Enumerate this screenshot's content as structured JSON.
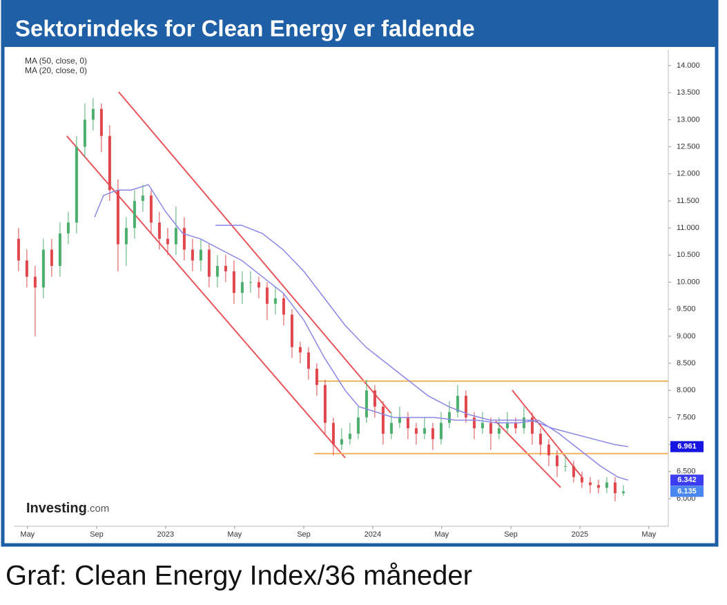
{
  "chart_data": {
    "type": "candlestick",
    "title": "Sektorindeks for Clean Energy er faldende",
    "caption": "Graf: Clean Energy Index/36 måneder",
    "watermark": "Investing",
    "watermark_suffix": ".com",
    "up_color": "#4caf6e",
    "down_color": "#e0474c",
    "x": [
      2022.29,
      2022.33,
      2022.37,
      2022.41,
      2022.45,
      2022.49,
      2022.53,
      2022.57,
      2022.61,
      2022.65,
      2022.69,
      2022.73,
      2022.77,
      2022.81,
      2022.85,
      2022.89,
      2022.93,
      2022.97,
      2023.01,
      2023.05,
      2023.09,
      2023.13,
      2023.17,
      2023.21,
      2023.25,
      2023.29,
      2023.33,
      2023.37,
      2023.41,
      2023.45,
      2023.49,
      2023.53,
      2023.57,
      2023.61,
      2023.65,
      2023.69,
      2023.73,
      2023.77,
      2023.81,
      2023.85,
      2023.89,
      2023.93,
      2023.97,
      2024.01,
      2024.05,
      2024.09,
      2024.13,
      2024.17,
      2024.21,
      2024.25,
      2024.29,
      2024.33,
      2024.37,
      2024.41,
      2024.45,
      2024.49,
      2024.53,
      2024.57,
      2024.61,
      2024.65,
      2024.69,
      2024.73,
      2024.77,
      2024.81,
      2024.85,
      2024.89,
      2024.93,
      2024.97,
      2025.01,
      2025.05,
      2025.09,
      2025.13,
      2025.17,
      2025.21
    ],
    "ohlc": [
      [
        10800,
        11000,
        10200,
        10400
      ],
      [
        10400,
        10600,
        9900,
        10100
      ],
      [
        10100,
        10300,
        9000,
        9900
      ],
      [
        9900,
        10800,
        9700,
        10600
      ],
      [
        10600,
        10800,
        10100,
        10300
      ],
      [
        10300,
        11100,
        10100,
        10900
      ],
      [
        10900,
        11300,
        10700,
        11100
      ],
      [
        11100,
        12700,
        10900,
        12500
      ],
      [
        12500,
        13300,
        12300,
        13000
      ],
      [
        13000,
        13400,
        12800,
        13200
      ],
      [
        13200,
        13300,
        12400,
        12700
      ],
      [
        12700,
        12900,
        11500,
        11700
      ],
      [
        11700,
        11900,
        10200,
        10700
      ],
      [
        10700,
        11200,
        10300,
        11000
      ],
      [
        11000,
        11700,
        10800,
        11500
      ],
      [
        11500,
        11800,
        11300,
        11600
      ],
      [
        11600,
        11700,
        10900,
        11100
      ],
      [
        11100,
        11300,
        10600,
        10800
      ],
      [
        10800,
        11000,
        10500,
        10700
      ],
      [
        10700,
        11400,
        10500,
        11000
      ],
      [
        11000,
        11200,
        10400,
        10600
      ],
      [
        10600,
        10800,
        10200,
        10400
      ],
      [
        10400,
        10800,
        10200,
        10600
      ],
      [
        10600,
        10700,
        9900,
        10100
      ],
      [
        10100,
        10500,
        9900,
        10300
      ],
      [
        10300,
        10500,
        10000,
        10200
      ],
      [
        10200,
        10400,
        9600,
        9800
      ],
      [
        9800,
        10200,
        9600,
        10000
      ],
      [
        10000,
        10200,
        9800,
        10000
      ],
      [
        10000,
        10100,
        9700,
        9900
      ],
      [
        9900,
        10000,
        9300,
        9600
      ],
      [
        9600,
        9900,
        9400,
        9700
      ],
      [
        9700,
        9800,
        9200,
        9400
      ],
      [
        9400,
        9500,
        8600,
        8800
      ],
      [
        8800,
        8900,
        8500,
        8700
      ],
      [
        8700,
        8800,
        8200,
        8400
      ],
      [
        8400,
        8500,
        7900,
        8100
      ],
      [
        8100,
        8200,
        7200,
        7400
      ],
      [
        7400,
        7500,
        6800,
        7000
      ],
      [
        7000,
        7300,
        6900,
        7100
      ],
      [
        7100,
        7400,
        7000,
        7200
      ],
      [
        7200,
        7700,
        7100,
        7500
      ],
      [
        7500,
        8200,
        7400,
        8000
      ],
      [
        8000,
        8100,
        7500,
        7700
      ],
      [
        7700,
        7800,
        7000,
        7200
      ],
      [
        7200,
        7600,
        7100,
        7400
      ],
      [
        7400,
        7700,
        7300,
        7500
      ],
      [
        7500,
        7600,
        7100,
        7300
      ],
      [
        7300,
        7400,
        7000,
        7200
      ],
      [
        7200,
        7500,
        7100,
        7300
      ],
      [
        7300,
        7400,
        6900,
        7100
      ],
      [
        7100,
        7600,
        7000,
        7400
      ],
      [
        7400,
        7800,
        7300,
        7600
      ],
      [
        7600,
        8100,
        7500,
        7900
      ],
      [
        7900,
        8000,
        7400,
        7500
      ],
      [
        7500,
        7600,
        7100,
        7300
      ],
      [
        7300,
        7600,
        7200,
        7400
      ],
      [
        7400,
        7500,
        6900,
        7200
      ],
      [
        7200,
        7500,
        7100,
        7300
      ],
      [
        7300,
        7600,
        7200,
        7400
      ],
      [
        7400,
        7500,
        7200,
        7300
      ],
      [
        7300,
        7700,
        7200,
        7500
      ],
      [
        7500,
        7600,
        7000,
        7200
      ],
      [
        7200,
        7300,
        6800,
        7000
      ],
      [
        7000,
        7100,
        6600,
        6800
      ],
      [
        6800,
        6900,
        6400,
        6600
      ],
      [
        6600,
        6800,
        6500,
        6600
      ],
      [
        6600,
        6700,
        6300,
        6400
      ],
      [
        6400,
        6500,
        6200,
        6300
      ],
      [
        6300,
        6400,
        6100,
        6250
      ],
      [
        6250,
        6350,
        6100,
        6200
      ],
      [
        6200,
        6400,
        6100,
        6300
      ],
      [
        6300,
        6400,
        5950,
        6100
      ],
      [
        6100,
        6250,
        6050,
        6135
      ]
    ],
    "series": [
      {
        "name": "MA (50, close, 0)",
        "color": "#8a86e6",
        "x": [
          2023.24,
          2023.367,
          2023.467,
          2023.567,
          2023.667,
          2023.767,
          2023.867,
          2023.967,
          2024.067,
          2024.167,
          2024.267,
          2024.367,
          2024.467,
          2024.567,
          2024.667,
          2024.767,
          2024.867,
          2024.967,
          2025.067,
          2025.167,
          2025.233
        ],
        "values": [
          11050,
          11050,
          10900,
          10600,
          10200,
          9700,
          9200,
          8800,
          8500,
          8200,
          7900,
          7700,
          7550,
          7450,
          7450,
          7450,
          7300,
          7200,
          7100,
          7000,
          6961
        ]
      },
      {
        "name": "MA (20, close, 0)",
        "color": "#8a86e6",
        "x": [
          2022.657,
          2022.7,
          2022.767,
          2022.833,
          2022.917,
          2023.0,
          2023.083,
          2023.167,
          2023.267,
          2023.367,
          2023.467,
          2023.567,
          2023.667,
          2023.767,
          2023.867,
          2023.933,
          2024.017,
          2024.1,
          2024.2,
          2024.3,
          2024.4,
          2024.5,
          2024.6,
          2024.7,
          2024.8,
          2024.9,
          2025.0,
          2025.1,
          2025.183,
          2025.233
        ],
        "values": [
          11200,
          11600,
          11700,
          11700,
          11800,
          11300,
          10900,
          10800,
          10600,
          10400,
          10100,
          9800,
          9300,
          8600,
          8000,
          7700,
          7600,
          7500,
          7500,
          7500,
          7450,
          7450,
          7400,
          7400,
          7450,
          7200,
          6900,
          6600,
          6400,
          6342
        ]
      }
    ],
    "trend_lines": [
      {
        "color": "#e8545a",
        "x": [
          2022.523,
          2023.867
        ],
        "values": [
          12699,
          6755
        ]
      },
      {
        "color": "#e8545a",
        "x": [
          2022.773,
          2024.087
        ],
        "values": [
          13515,
          7584
        ]
      },
      {
        "color": "#e8545a",
        "x": [
          2024.593,
          2024.907
        ],
        "values": [
          7431,
          6207
        ]
      },
      {
        "color": "#e8545a",
        "x": [
          2024.673,
          2025.007
        ],
        "values": [
          8005,
          6411
        ]
      },
      {
        "color": "#f2b25c",
        "x": [
          2023.733,
          2025.427
        ],
        "values": [
          8171,
          8171
        ]
      },
      {
        "color": "#f2b25c",
        "x": [
          2023.717,
          2025.427
        ],
        "values": [
          6832,
          6832
        ]
      }
    ],
    "price_tags": [
      {
        "value": 6961,
        "label": "6.961",
        "color": "#1616e0"
      },
      {
        "value": 6342,
        "label": "6.342",
        "color": "#3c3cf0"
      },
      {
        "value": 6135,
        "label": "6.135",
        "color": "#4a86f0"
      }
    ],
    "xlim": [
      2022.267,
      2025.427
    ],
    "xticks": [
      {
        "value": 2022.333,
        "label": "May"
      },
      {
        "value": 2022.667,
        "label": "Sep"
      },
      {
        "value": 2023,
        "label": "2023"
      },
      {
        "value": 2023.333,
        "label": "May"
      },
      {
        "value": 2023.667,
        "label": "Sep"
      },
      {
        "value": 2024,
        "label": "2024"
      },
      {
        "value": 2024.333,
        "label": "May"
      },
      {
        "value": 2024.667,
        "label": "Sep"
      },
      {
        "value": 2025,
        "label": "2025"
      },
      {
        "value": 2025.333,
        "label": "May"
      }
    ],
    "ylim": [
      5490,
      14293
    ],
    "yticks": [
      {
        "value": 6000,
        "label": "6.000"
      },
      {
        "value": 6500,
        "label": "6.500"
      },
      {
        "value": 7000,
        "label": "7.000"
      },
      {
        "value": 7500,
        "label": "7.500"
      },
      {
        "value": 8000,
        "label": "8.000"
      },
      {
        "value": 8500,
        "label": "8.500"
      },
      {
        "value": 9000,
        "label": "9.000"
      },
      {
        "value": 9500,
        "label": "9.500"
      },
      {
        "value": 10000,
        "label": "10.000"
      },
      {
        "value": 10500,
        "label": "10.500"
      },
      {
        "value": 11000,
        "label": "11.000"
      },
      {
        "value": 11500,
        "label": "11.500"
      },
      {
        "value": 12000,
        "label": "12.000"
      },
      {
        "value": 12500,
        "label": "12.500"
      },
      {
        "value": 13000,
        "label": "13.000"
      },
      {
        "value": 13500,
        "label": "13.500"
      },
      {
        "value": 14000,
        "label": "14.000"
      }
    ]
  }
}
